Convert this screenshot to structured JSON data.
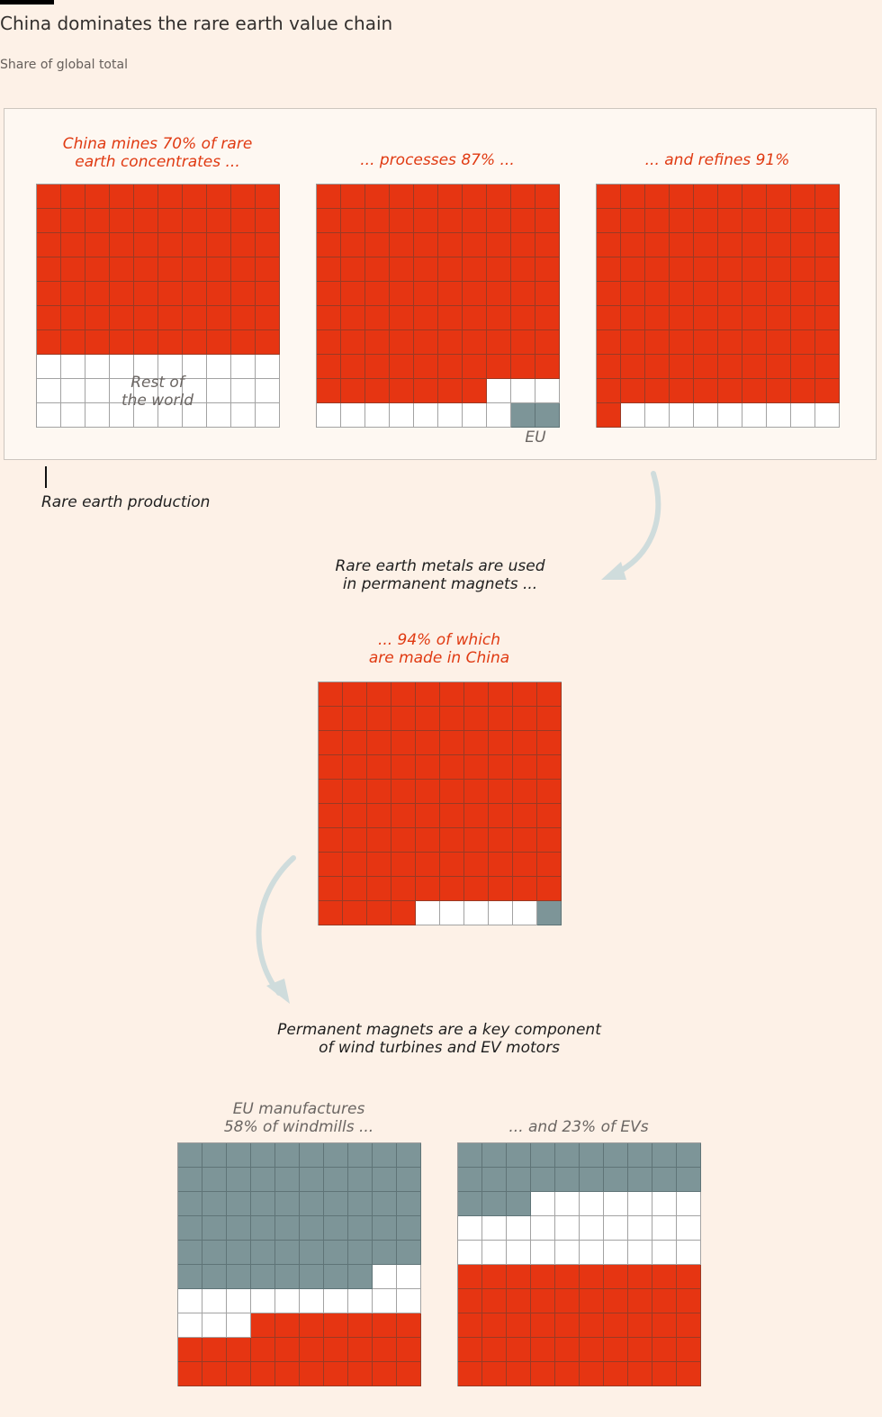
{
  "header": {
    "title": "China dominates the rare earth value chain",
    "subtitle": "Share of global total"
  },
  "colors": {
    "china": "#e63512",
    "rest_of_world": "#ffffff",
    "eu": "#7d9598",
    "background": "#fdf1e7",
    "arrow": "#cfdcdc"
  },
  "panel_labels": {
    "mines": "China mines 70% of rare\nearth concentrates ...",
    "processes": "... processes 87% ...",
    "refines": "... and refines 91%",
    "rest_of_world": "Rest of\nthe world",
    "eu": "EU",
    "rare_earth_production": "Rare earth production"
  },
  "captions": {
    "metals_used": "Rare earth metals are used\nin permanent magnets ...",
    "magnets_china": "... 94% of which\nare made in China",
    "magnets_component": "Permanent magnets are a key component\nof wind turbines and EV motors",
    "eu_windmills": "EU manufactures\n58% of windmills ...",
    "eu_evs": "... and 23% of EVs"
  },
  "chart_data": [
    {
      "type": "waffle",
      "title": "China mines 70% of rare earth concentrates ...",
      "grid": "10x10",
      "series": [
        {
          "name": "China",
          "value": 70
        },
        {
          "name": "Rest of the world",
          "value": 30
        }
      ]
    },
    {
      "type": "waffle",
      "title": "... processes 87% ...",
      "grid": "10x10",
      "series": [
        {
          "name": "China",
          "value": 87
        },
        {
          "name": "Rest of the world",
          "value": 11
        },
        {
          "name": "EU",
          "value": 2
        }
      ]
    },
    {
      "type": "waffle",
      "title": "... and refines 91%",
      "grid": "10x10",
      "series": [
        {
          "name": "China",
          "value": 91
        },
        {
          "name": "Rest of the world",
          "value": 9
        }
      ]
    },
    {
      "type": "waffle",
      "title": "... 94% of which are made in China",
      "grid": "10x10",
      "series": [
        {
          "name": "China",
          "value": 94
        },
        {
          "name": "Rest of the world",
          "value": 5
        },
        {
          "name": "EU",
          "value": 1
        }
      ]
    },
    {
      "type": "waffle",
      "title": "EU manufactures 58% of windmills ...",
      "grid": "10x10",
      "series": [
        {
          "name": "EU",
          "value": 58
        },
        {
          "name": "Rest of the world",
          "value": 15
        },
        {
          "name": "China",
          "value": 27
        }
      ]
    },
    {
      "type": "waffle",
      "title": "... and 23% of EVs",
      "grid": "10x10",
      "series": [
        {
          "name": "EU",
          "value": 23
        },
        {
          "name": "Rest of the world",
          "value": 27
        },
        {
          "name": "China",
          "value": 50
        }
      ]
    }
  ]
}
